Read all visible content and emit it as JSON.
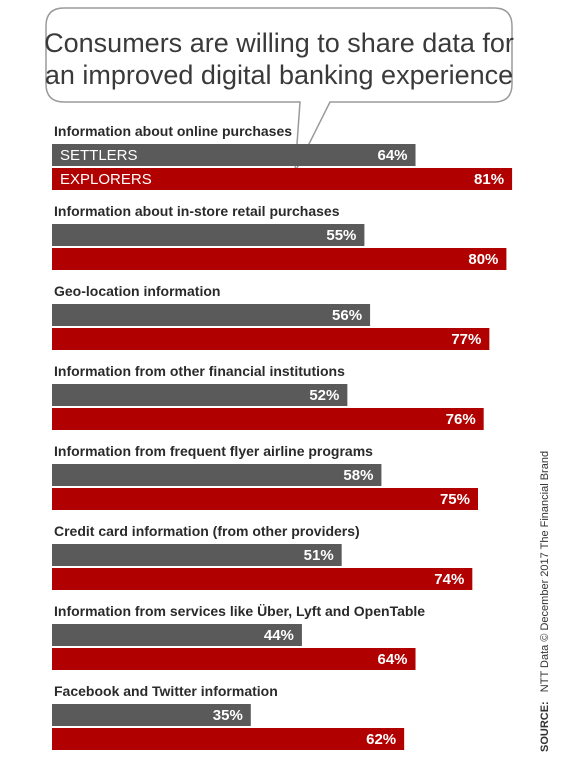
{
  "chart_data": {
    "type": "bar",
    "orientation": "horizontal",
    "title": "Consumers are willing to share data for an improved digital banking experience",
    "title_lines": [
      "Consumers are willing to share data for",
      "an improved digital banking experience"
    ],
    "categories": [
      "Information about online purchases",
      "Information about in-store retail purchases",
      "Geo-location information",
      "Information from other financial institutions",
      "Information from frequent flyer airline programs",
      "Credit card information (from other providers)",
      "Information from services like Über, Lyft and OpenTable",
      "Facebook and Twitter information"
    ],
    "series": [
      {
        "name": "SETTLERS",
        "color": "#5a5a5a",
        "values": [
          64,
          55,
          56,
          52,
          58,
          51,
          44,
          35
        ]
      },
      {
        "name": "EXPLORERS",
        "color": "#b00000",
        "values": [
          81,
          80,
          77,
          76,
          75,
          74,
          64,
          62
        ]
      }
    ],
    "value_suffix": "%",
    "xlim": [
      0,
      100
    ],
    "grid": false,
    "legend": "inline labels on first category bars",
    "source_label": "SOURCE:",
    "source_text": "NTT Data © December 2017 The Financial Brand"
  }
}
